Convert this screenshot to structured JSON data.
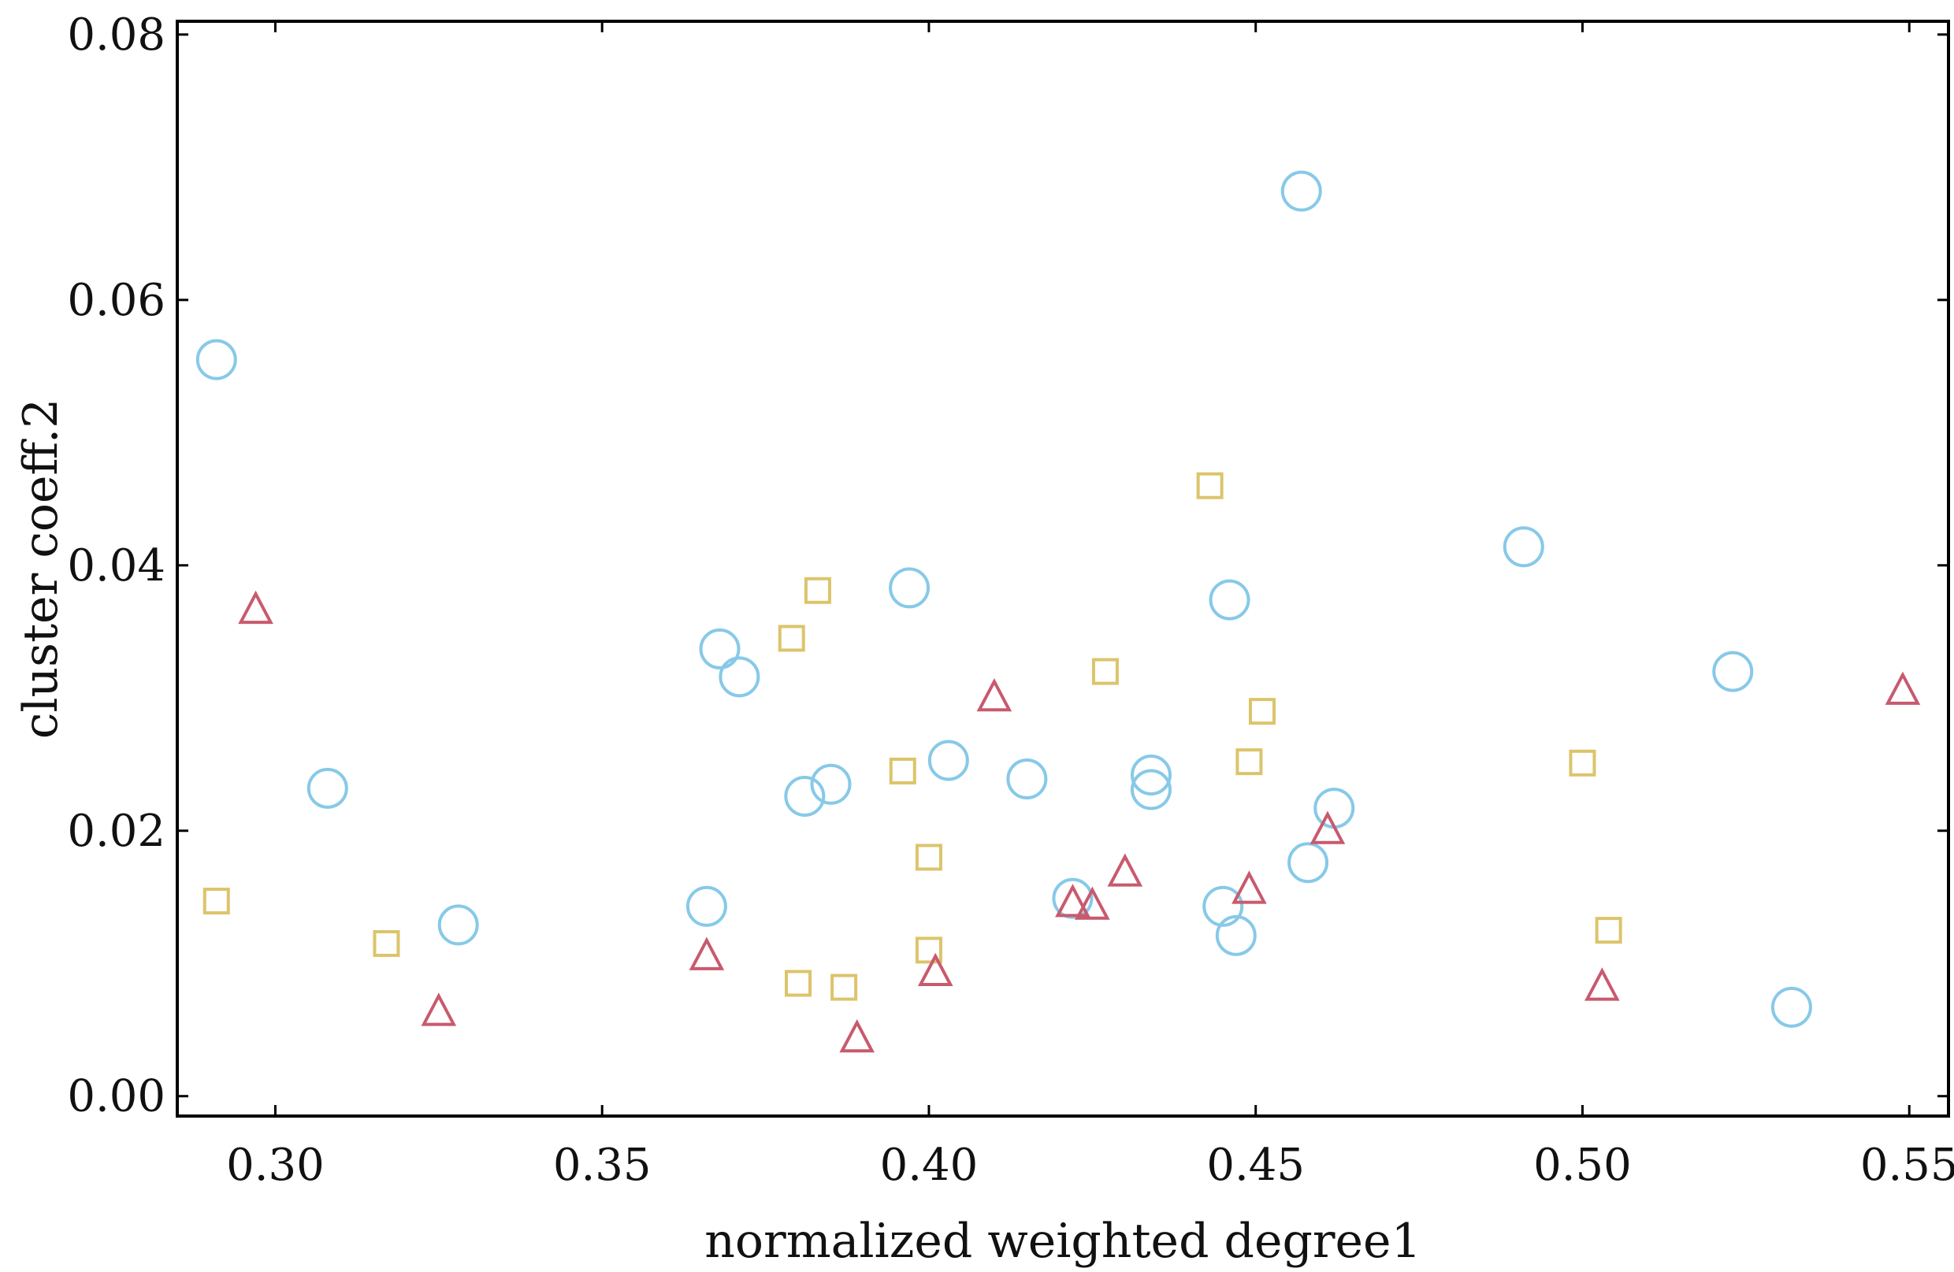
{
  "chart_data": {
    "type": "scatter",
    "title": "",
    "xlabel": "normalized weighted degree1",
    "ylabel": "cluster coeff.2",
    "xlim": [
      0.285,
      0.556
    ],
    "ylim": [
      -0.0015,
      0.081
    ],
    "xticks": [
      0.3,
      0.35,
      0.4,
      0.45,
      0.5,
      0.55
    ],
    "xtick_labels": [
      "0.30",
      "0.35",
      "0.40",
      "0.45",
      "0.50",
      "0.55"
    ],
    "yticks": [
      0.0,
      0.02,
      0.04,
      0.06,
      0.08
    ],
    "ytick_labels": [
      "0.00",
      "0.02",
      "0.04",
      "0.06",
      "0.08"
    ],
    "grid": false,
    "legend": "none",
    "series": [
      {
        "marker": "circle",
        "color": "#87c9e8",
        "points": [
          {
            "x": 0.291,
            "y": 0.0555
          },
          {
            "x": 0.308,
            "y": 0.0232
          },
          {
            "x": 0.328,
            "y": 0.0129
          },
          {
            "x": 0.366,
            "y": 0.0143
          },
          {
            "x": 0.368,
            "y": 0.0337
          },
          {
            "x": 0.371,
            "y": 0.0316
          },
          {
            "x": 0.381,
            "y": 0.0226
          },
          {
            "x": 0.385,
            "y": 0.0235
          },
          {
            "x": 0.397,
            "y": 0.0383
          },
          {
            "x": 0.403,
            "y": 0.0253
          },
          {
            "x": 0.415,
            "y": 0.0239
          },
          {
            "x": 0.422,
            "y": 0.0149
          },
          {
            "x": 0.434,
            "y": 0.0242
          },
          {
            "x": 0.434,
            "y": 0.0231
          },
          {
            "x": 0.445,
            "y": 0.0143
          },
          {
            "x": 0.446,
            "y": 0.0374
          },
          {
            "x": 0.447,
            "y": 0.0121
          },
          {
            "x": 0.457,
            "y": 0.0682
          },
          {
            "x": 0.458,
            "y": 0.0176
          },
          {
            "x": 0.462,
            "y": 0.0217
          },
          {
            "x": 0.491,
            "y": 0.0414
          },
          {
            "x": 0.523,
            "y": 0.032
          },
          {
            "x": 0.532,
            "y": 0.0067
          }
        ]
      },
      {
        "marker": "square",
        "color": "#dcc46b",
        "points": [
          {
            "x": 0.291,
            "y": 0.0147
          },
          {
            "x": 0.317,
            "y": 0.0115
          },
          {
            "x": 0.379,
            "y": 0.0345
          },
          {
            "x": 0.38,
            "y": 0.0085
          },
          {
            "x": 0.383,
            "y": 0.0381
          },
          {
            "x": 0.387,
            "y": 0.0082
          },
          {
            "x": 0.396,
            "y": 0.0245
          },
          {
            "x": 0.4,
            "y": 0.011
          },
          {
            "x": 0.4,
            "y": 0.018
          },
          {
            "x": 0.427,
            "y": 0.032
          },
          {
            "x": 0.443,
            "y": 0.046
          },
          {
            "x": 0.449,
            "y": 0.0252
          },
          {
            "x": 0.451,
            "y": 0.029
          },
          {
            "x": 0.5,
            "y": 0.0251
          },
          {
            "x": 0.504,
            "y": 0.0125
          }
        ]
      },
      {
        "marker": "triangle",
        "color": "#c85a6e",
        "points": [
          {
            "x": 0.297,
            "y": 0.0366
          },
          {
            "x": 0.325,
            "y": 0.0063
          },
          {
            "x": 0.366,
            "y": 0.0105
          },
          {
            "x": 0.389,
            "y": 0.0043
          },
          {
            "x": 0.401,
            "y": 0.0093
          },
          {
            "x": 0.41,
            "y": 0.03
          },
          {
            "x": 0.422,
            "y": 0.0145
          },
          {
            "x": 0.425,
            "y": 0.0143
          },
          {
            "x": 0.43,
            "y": 0.0168
          },
          {
            "x": 0.449,
            "y": 0.0155
          },
          {
            "x": 0.461,
            "y": 0.02
          },
          {
            "x": 0.503,
            "y": 0.0082
          },
          {
            "x": 0.549,
            "y": 0.0305
          }
        ]
      }
    ]
  }
}
